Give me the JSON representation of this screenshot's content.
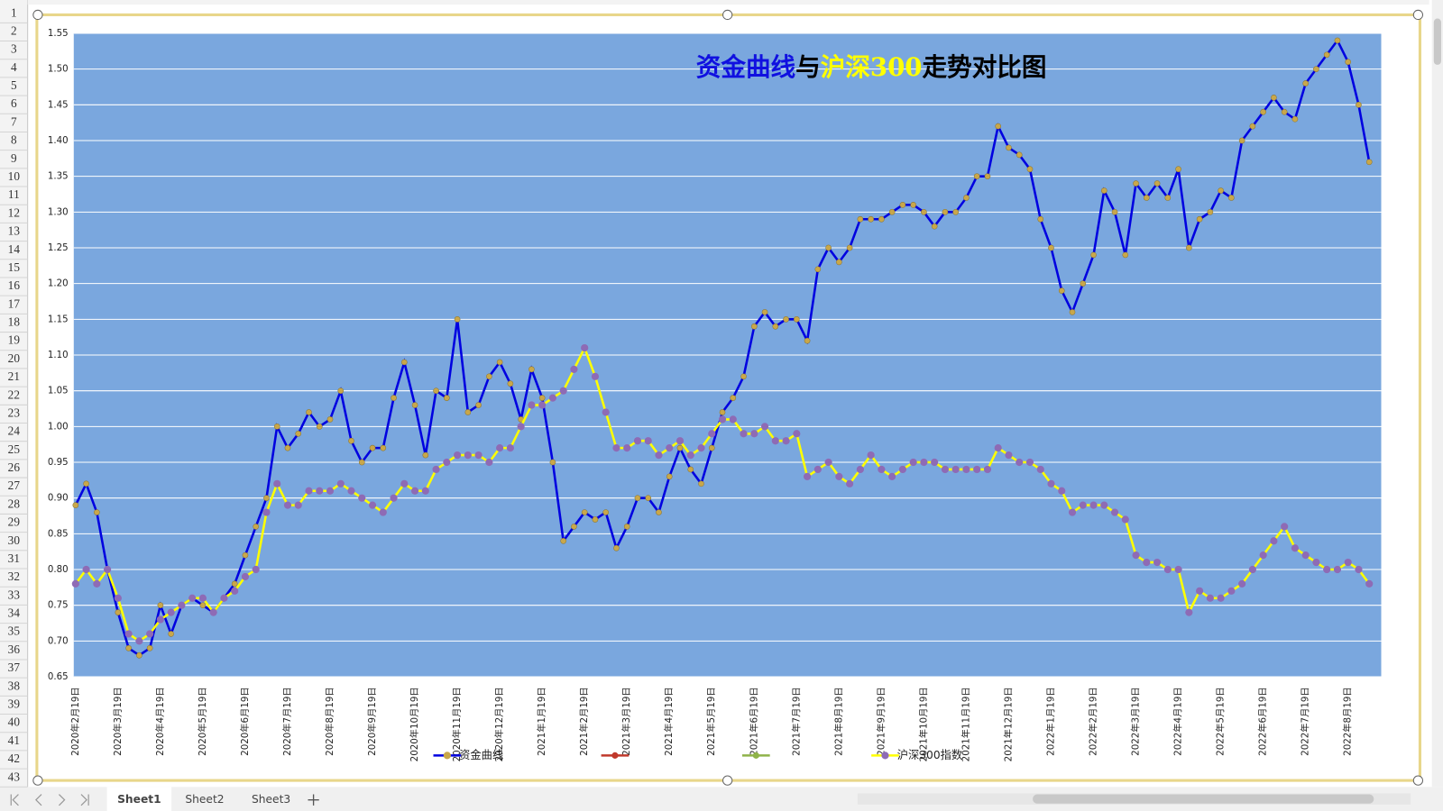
{
  "rows": [
    1,
    2,
    3,
    4,
    5,
    6,
    7,
    8,
    9,
    10,
    11,
    12,
    13,
    14,
    15,
    16,
    17,
    18,
    19,
    20,
    21,
    22,
    23,
    24,
    25,
    26,
    27,
    28,
    29,
    30,
    31,
    32,
    33,
    34,
    35,
    36,
    37,
    38,
    39,
    40,
    41,
    42,
    43
  ],
  "sheets": [
    "Sheet1",
    "Sheet2",
    "Sheet3"
  ],
  "chart_data": {
    "type": "line",
    "title": [
      "资金曲线",
      "与",
      "沪深300",
      "走势对比图"
    ],
    "title_colors": [
      "#1010e0",
      "#000000",
      "#ffff00",
      "#000000"
    ],
    "background": "#7aa7de",
    "grid": true,
    "legend": "bottom",
    "ylim": [
      0.65,
      1.55
    ],
    "yticks": [
      0.65,
      {
        "value": 0.7,
        "label": "0.70"
      },
      0.75,
      {
        "value": 0.8,
        "label": "0.80"
      },
      0.85,
      {
        "value": 0.9,
        "label": "0.90"
      },
      0.95,
      {
        "value": 1.0,
        "label": "1.00"
      },
      1.05,
      {
        "value": 1.1,
        "label": "1.10"
      },
      1.15,
      {
        "value": 1.2,
        "label": "1.20"
      },
      1.25,
      {
        "value": 1.3,
        "label": "1.30"
      },
      1.35,
      {
        "value": 1.4,
        "label": "1.40"
      },
      1.45,
      {
        "value": 1.5,
        "label": "1.50"
      },
      1.55
    ],
    "categories": [
      "2020年2月19日",
      null,
      null,
      null,
      "2020年3月19日",
      null,
      null,
      null,
      "2020年4月19日",
      null,
      null,
      null,
      "2020年5月19日",
      null,
      null,
      null,
      "2020年6月19日",
      null,
      null,
      null,
      "2020年7月19日",
      null,
      null,
      null,
      "2020年8月19日",
      null,
      null,
      null,
      "2020年9月19日",
      null,
      null,
      null,
      "2020年10月19日",
      null,
      null,
      null,
      "2020年11月19日",
      null,
      null,
      null,
      "2020年12月19日",
      null,
      null,
      null,
      "2021年1月19日",
      null,
      null,
      null,
      "2021年2月19日",
      null,
      null,
      null,
      "2021年3月19日",
      null,
      null,
      null,
      "2021年4月19日",
      null,
      null,
      null,
      "2021年5月19日",
      null,
      null,
      null,
      "2021年6月19日",
      null,
      null,
      null,
      "2021年7月19日",
      null,
      null,
      null,
      "2021年8月19日",
      null,
      null,
      null,
      "2021年9月19日",
      null,
      null,
      null,
      "2021年10月19日",
      null,
      null,
      null,
      "2021年11月19日",
      null,
      null,
      null,
      "2021年12月19日",
      null,
      null,
      null,
      "2022年1月19日",
      null,
      null,
      null,
      "2022年2月19日",
      null,
      null,
      null,
      "2022年3月19日",
      null,
      null,
      null,
      "2022年4月19日",
      null,
      null,
      null,
      "2022年5月19日",
      null,
      null,
      null,
      "2022年6月19日",
      null,
      null,
      null,
      "2022年7月19日",
      null,
      null,
      null,
      "2022年8月19日",
      null,
      null
    ],
    "series": [
      {
        "name": "资金曲线",
        "color": "#0000e0",
        "marker_color": "#c9a74a",
        "values": [
          0.89,
          0.92,
          0.88,
          0.8,
          0.74,
          0.69,
          0.68,
          0.69,
          0.75,
          0.71,
          0.75,
          0.76,
          0.75,
          0.74,
          0.76,
          0.78,
          0.82,
          0.86,
          0.9,
          1.0,
          0.97,
          0.99,
          1.02,
          1.0,
          1.01,
          1.05,
          0.98,
          0.95,
          0.97,
          0.97,
          1.04,
          1.09,
          1.03,
          0.96,
          1.05,
          1.04,
          1.15,
          1.02,
          1.03,
          1.07,
          1.09,
          1.06,
          1.01,
          1.08,
          1.04,
          0.95,
          0.84,
          0.86,
          0.88,
          0.87,
          0.88,
          0.83,
          0.86,
          0.9,
          0.9,
          0.88,
          0.93,
          0.97,
          0.94,
          0.92,
          0.97,
          1.02,
          1.04,
          1.07,
          1.14,
          1.16,
          1.14,
          1.15,
          1.15,
          1.12,
          1.22,
          1.25,
          1.23,
          1.25,
          1.29,
          1.29,
          1.29,
          1.3,
          1.31,
          1.31,
          1.3,
          1.28,
          1.3,
          1.3,
          1.32,
          1.35,
          1.35,
          1.42,
          1.39,
          1.38,
          1.36,
          1.29,
          1.25,
          1.19,
          1.16,
          1.2,
          1.24,
          1.33,
          1.3,
          1.24,
          1.34,
          1.32,
          1.34,
          1.32,
          1.36,
          1.25,
          1.29,
          1.3,
          1.33,
          1.32,
          1.4,
          1.42,
          1.44,
          1.46,
          1.44,
          1.43,
          1.48,
          1.5,
          1.52,
          1.54,
          1.51,
          1.45,
          1.37
        ]
      },
      {
        "name": "沪深300指数",
        "color": "#ffff00",
        "marker_color": "#8e6bb5",
        "values": [
          0.78,
          0.8,
          0.78,
          0.8,
          0.76,
          0.71,
          0.7,
          0.71,
          0.73,
          0.74,
          0.75,
          0.76,
          0.76,
          0.74,
          0.76,
          0.77,
          0.79,
          0.8,
          0.88,
          0.92,
          0.89,
          0.89,
          0.91,
          0.91,
          0.91,
          0.92,
          0.91,
          0.9,
          0.89,
          0.88,
          0.9,
          0.92,
          0.91,
          0.91,
          0.94,
          0.95,
          0.96,
          0.96,
          0.96,
          0.95,
          0.97,
          0.97,
          1.0,
          1.03,
          1.03,
          1.04,
          1.05,
          1.08,
          1.11,
          1.07,
          1.02,
          0.97,
          0.97,
          0.98,
          0.98,
          0.96,
          0.97,
          0.98,
          0.96,
          0.97,
          0.99,
          1.01,
          1.01,
          0.99,
          0.99,
          1.0,
          0.98,
          0.98,
          0.99,
          0.93,
          0.94,
          0.95,
          0.93,
          0.92,
          0.94,
          0.96,
          0.94,
          0.93,
          0.94,
          0.95,
          0.95,
          0.95,
          0.94,
          0.94,
          0.94,
          0.94,
          0.94,
          0.97,
          0.96,
          0.95,
          0.95,
          0.94,
          0.92,
          0.91,
          0.88,
          0.89,
          0.89,
          0.89,
          0.88,
          0.87,
          0.82,
          0.81,
          0.81,
          0.8,
          0.8,
          0.74,
          0.77,
          0.76,
          0.76,
          0.77,
          0.78,
          0.8,
          0.82,
          0.84,
          0.86,
          0.83,
          0.82,
          0.81,
          0.8,
          0.8,
          0.81,
          0.8,
          0.78
        ]
      }
    ]
  }
}
